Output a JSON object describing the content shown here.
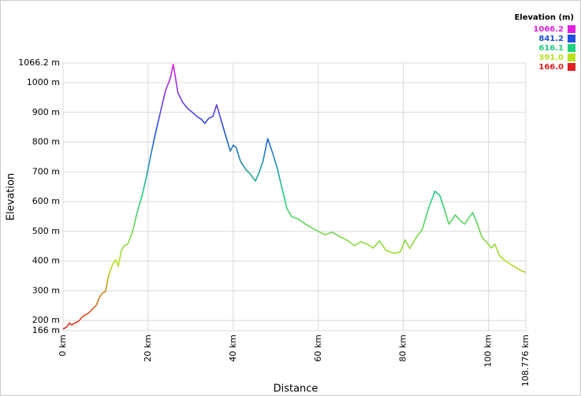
{
  "chart_data": {
    "type": "line",
    "x_label": "Distance",
    "y_label": "Elevation",
    "x": [
      0,
      0.9,
      1.5,
      2,
      2.8,
      3.7,
      4.6,
      5.9,
      7,
      7.8,
      8.5,
      9.3,
      10,
      10.7,
      11.7,
      12.4,
      13,
      13.7,
      14.4,
      15.2,
      16.3,
      17.4,
      18.5,
      19.6,
      20.7,
      21.9,
      23,
      24.1,
      25.2,
      25.9,
      26.3,
      27,
      28.1,
      29.3,
      30.4,
      31.5,
      32.6,
      33.3,
      34.3,
      35.2,
      36.1,
      37,
      38.1,
      39.3,
      40,
      40.7,
      41.7,
      42.9,
      44.1,
      45.2,
      45.9,
      47,
      48.1,
      49.3,
      50.4,
      51.5,
      52.6,
      53.7,
      55.2,
      57,
      59.3,
      61.5,
      63.3,
      64.8,
      66.7,
      68.5,
      70,
      71.5,
      72.9,
      74.4,
      75.9,
      77.8,
      79.3,
      80.4,
      81.5,
      83,
      84.4,
      85.9,
      87.4,
      88.5,
      89.6,
      90.7,
      92.2,
      93.3,
      94.4,
      95.6,
      96.3,
      97.4,
      98.5,
      99.6,
      100.7,
      101.5,
      102.6,
      104.1,
      105.9,
      107.4,
      108.776
    ],
    "series": [
      {
        "values": [
          171,
          179,
          192,
          185,
          192,
          198,
          214,
          224,
          240,
          251,
          277,
          293,
          298,
          351,
          391,
          404,
          383,
          436,
          452,
          457,
          497,
          563,
          616,
          683,
          762,
          841,
          908,
          974,
          1014,
          1061,
          1027,
          966,
          934,
          913,
          900,
          886,
          876,
          863,
          881,
          886,
          926,
          881,
          828,
          770,
          790,
          781,
          736,
          709,
          691,
          669,
          691,
          736,
          812,
          762,
          709,
          643,
          577,
          550,
          542,
          524,
          505,
          489,
          497,
          484,
          471,
          452,
          465,
          457,
          444,
          468,
          436,
          426,
          431,
          471,
          442,
          479,
          505,
          577,
          635,
          622,
          577,
          524,
          555,
          537,
          524,
          550,
          563,
          524,
          479,
          463,
          444,
          457,
          418,
          399,
          383,
          370,
          362
        ]
      }
    ],
    "xlim": [
      0,
      108.776
    ],
    "xticks": [
      {
        "value": 0,
        "label": "0 km"
      },
      {
        "value": 20,
        "label": "20 km"
      },
      {
        "value": 40,
        "label": "40 km"
      },
      {
        "value": 60,
        "label": "60 km"
      },
      {
        "value": 80,
        "label": "80 km"
      },
      {
        "value": 100,
        "label": "100 km"
      },
      {
        "value": 108.776,
        "label": "108.776 km"
      }
    ],
    "ylim": [
      166,
      1066.2
    ],
    "yticks": [
      {
        "value": 166,
        "label": "166 m"
      },
      {
        "value": 200,
        "label": "200 m"
      },
      {
        "value": 300,
        "label": "300 m"
      },
      {
        "value": 400,
        "label": "400 m"
      },
      {
        "value": 500,
        "label": "500 m"
      },
      {
        "value": 600,
        "label": "600 m"
      },
      {
        "value": 700,
        "label": "700 m"
      },
      {
        "value": 800,
        "label": "800 m"
      },
      {
        "value": 900,
        "label": "900 m"
      },
      {
        "value": 1000,
        "label": "1000 m"
      },
      {
        "value": 1066.2,
        "label": "1066.2 m"
      }
    ],
    "grid": true,
    "color_scale": {
      "title": "Elevation (m)",
      "stops": [
        {
          "value": 1066.2,
          "color": "#e020e0"
        },
        {
          "value": 841.2,
          "color": "#2050e0"
        },
        {
          "value": 616.1,
          "color": "#20d080"
        },
        {
          "value": 391,
          "label": "391.0",
          "color": "#b8e020"
        },
        {
          "value": 166,
          "label": "166.0",
          "color": "#e02020"
        }
      ]
    }
  }
}
